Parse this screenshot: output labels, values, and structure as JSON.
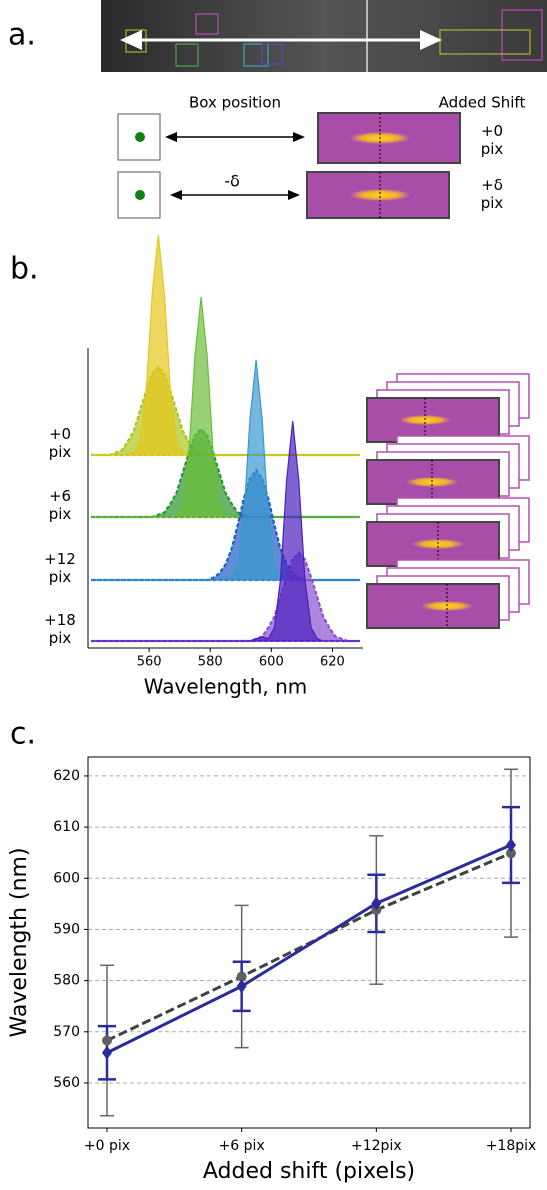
{
  "panel_labels": {
    "a": "a.",
    "b": "b.",
    "c": "c."
  },
  "diagram": {
    "box_position_label": "Box position",
    "added_shift_label": "Added Shift",
    "shift_symbol": "-δ",
    "rows": [
      {
        "shift_label": "+0 pix"
      },
      {
        "shift_label": "+δ pix"
      }
    ]
  },
  "chart_data": [
    {
      "type": "ridgeline",
      "xlabel": "Wavelength, nm",
      "xlim": [
        540,
        630
      ],
      "xticks": [
        560,
        580,
        600,
        620
      ],
      "x": [
        541,
        543,
        545,
        547,
        549,
        551,
        553,
        555,
        557,
        559,
        561,
        563,
        565,
        567,
        569,
        571,
        573,
        575,
        577,
        579,
        581,
        583,
        585,
        587,
        589,
        591,
        593,
        595,
        597,
        599,
        601,
        603,
        605,
        607,
        609,
        611,
        613,
        615,
        617,
        619,
        621,
        623,
        625,
        627,
        629
      ],
      "rows": [
        {
          "label": "+0 pix",
          "series": [
            {
              "color": "#e6c619",
              "values": [
                0,
                0,
                0,
                0,
                0,
                0,
                0,
                0.01,
                0.06,
                0.28,
                0.73,
                1,
                0.73,
                0.28,
                0.06,
                0.01,
                0,
                0,
                0,
                0,
                0,
                0,
                0,
                0,
                0,
                0,
                0,
                0,
                0,
                0,
                0,
                0,
                0,
                0,
                0,
                0,
                0,
                0,
                0,
                0,
                0,
                0,
                0,
                0,
                0
              ]
            },
            {
              "color": "#a9c61e",
              "values": [
                0,
                0,
                0,
                0,
                0.01,
                0.02,
                0.06,
                0.11,
                0.2,
                0.29,
                0.37,
                0.4,
                0.37,
                0.29,
                0.2,
                0.11,
                0.06,
                0.02,
                0.01,
                0,
                0,
                0,
                0,
                0,
                0,
                0,
                0,
                0,
                0,
                0,
                0,
                0,
                0,
                0,
                0,
                0,
                0,
                0,
                0,
                0,
                0,
                0,
                0,
                0,
                0
              ]
            }
          ]
        },
        {
          "label": "+6 pix",
          "series": [
            {
              "color": "#6cbd3a",
              "values": [
                0,
                0,
                0,
                0,
                0,
                0,
                0,
                0,
                0,
                0,
                0,
                0,
                0,
                0,
                0.01,
                0.06,
                0.28,
                0.73,
                1,
                0.73,
                0.28,
                0.06,
                0.01,
                0,
                0,
                0,
                0,
                0,
                0,
                0,
                0,
                0,
                0,
                0,
                0,
                0,
                0,
                0,
                0,
                0,
                0,
                0,
                0,
                0,
                0
              ]
            },
            {
              "color": "#2a962c",
              "values": [
                0,
                0,
                0,
                0,
                0,
                0,
                0,
                0,
                0,
                0,
                0,
                0.01,
                0.02,
                0.06,
                0.11,
                0.2,
                0.29,
                0.37,
                0.4,
                0.37,
                0.29,
                0.2,
                0.11,
                0.06,
                0.02,
                0.01,
                0,
                0,
                0,
                0,
                0,
                0,
                0,
                0,
                0,
                0,
                0,
                0,
                0,
                0,
                0,
                0,
                0,
                0,
                0
              ]
            }
          ]
        },
        {
          "label": "+12 pix",
          "series": [
            {
              "color": "#3a98cf",
              "values": [
                0,
                0,
                0,
                0,
                0,
                0,
                0,
                0,
                0,
                0,
                0,
                0,
                0,
                0,
                0,
                0,
                0,
                0,
                0,
                0,
                0,
                0,
                0,
                0.01,
                0.06,
                0.28,
                0.73,
                1,
                0.73,
                0.28,
                0.06,
                0.01,
                0,
                0,
                0,
                0,
                0,
                0,
                0,
                0,
                0,
                0,
                0,
                0,
                0
              ]
            },
            {
              "color": "#1c5ec2",
              "values": [
                0,
                0,
                0,
                0,
                0,
                0,
                0,
                0,
                0,
                0,
                0,
                0,
                0,
                0,
                0,
                0,
                0,
                0,
                0,
                0,
                0.01,
                0.03,
                0.07,
                0.14,
                0.25,
                0.37,
                0.46,
                0.5,
                0.46,
                0.37,
                0.25,
                0.14,
                0.07,
                0.03,
                0.01,
                0,
                0,
                0,
                0,
                0,
                0,
                0,
                0,
                0,
                0
              ]
            }
          ]
        },
        {
          "label": "+18 pix",
          "series": [
            {
              "color": "#4a1fbf",
              "values": [
                0,
                0,
                0,
                0,
                0,
                0,
                0,
                0,
                0,
                0,
                0,
                0,
                0,
                0,
                0,
                0,
                0,
                0,
                0,
                0,
                0,
                0,
                0,
                0,
                0,
                0,
                0,
                0.01,
                0.02,
                0.01,
                0.06,
                0.28,
                0.73,
                1,
                0.73,
                0.28,
                0.06,
                0.01,
                0,
                0,
                0,
                0,
                0,
                0,
                0
              ]
            },
            {
              "color": "#8a52d2",
              "values": [
                0,
                0,
                0,
                0,
                0,
                0,
                0,
                0,
                0,
                0,
                0,
                0,
                0,
                0,
                0,
                0,
                0,
                0,
                0,
                0,
                0,
                0,
                0,
                0,
                0,
                0,
                0,
                0.01,
                0.02,
                0.06,
                0.11,
                0.2,
                0.29,
                0.37,
                0.4,
                0.37,
                0.29,
                0.2,
                0.11,
                0.06,
                0.02,
                0.01,
                0,
                0,
                0
              ]
            }
          ]
        }
      ]
    },
    {
      "type": "line",
      "xlabel": "Added shift (pixels)",
      "ylabel": "Wavelength (nm)",
      "categories": [
        "+0 pix",
        "+6 pix",
        "+12pix",
        "+18pix"
      ],
      "ylim": [
        551.2,
        623.7
      ],
      "yticks": [
        560,
        570,
        580,
        590,
        600,
        610,
        620
      ],
      "grid": true,
      "series": [
        {
          "color": "#404040",
          "values": [
            568.3,
            580.8,
            593.8,
            604.9
          ],
          "errors": [
            14.7,
            13.9,
            14.5,
            16.4
          ]
        },
        {
          "color": "#2b2b9c",
          "values": [
            565.9,
            578.9,
            595.1,
            606.5
          ],
          "errors": [
            5.2,
            4.8,
            5.6,
            7.4
          ]
        }
      ]
    }
  ]
}
